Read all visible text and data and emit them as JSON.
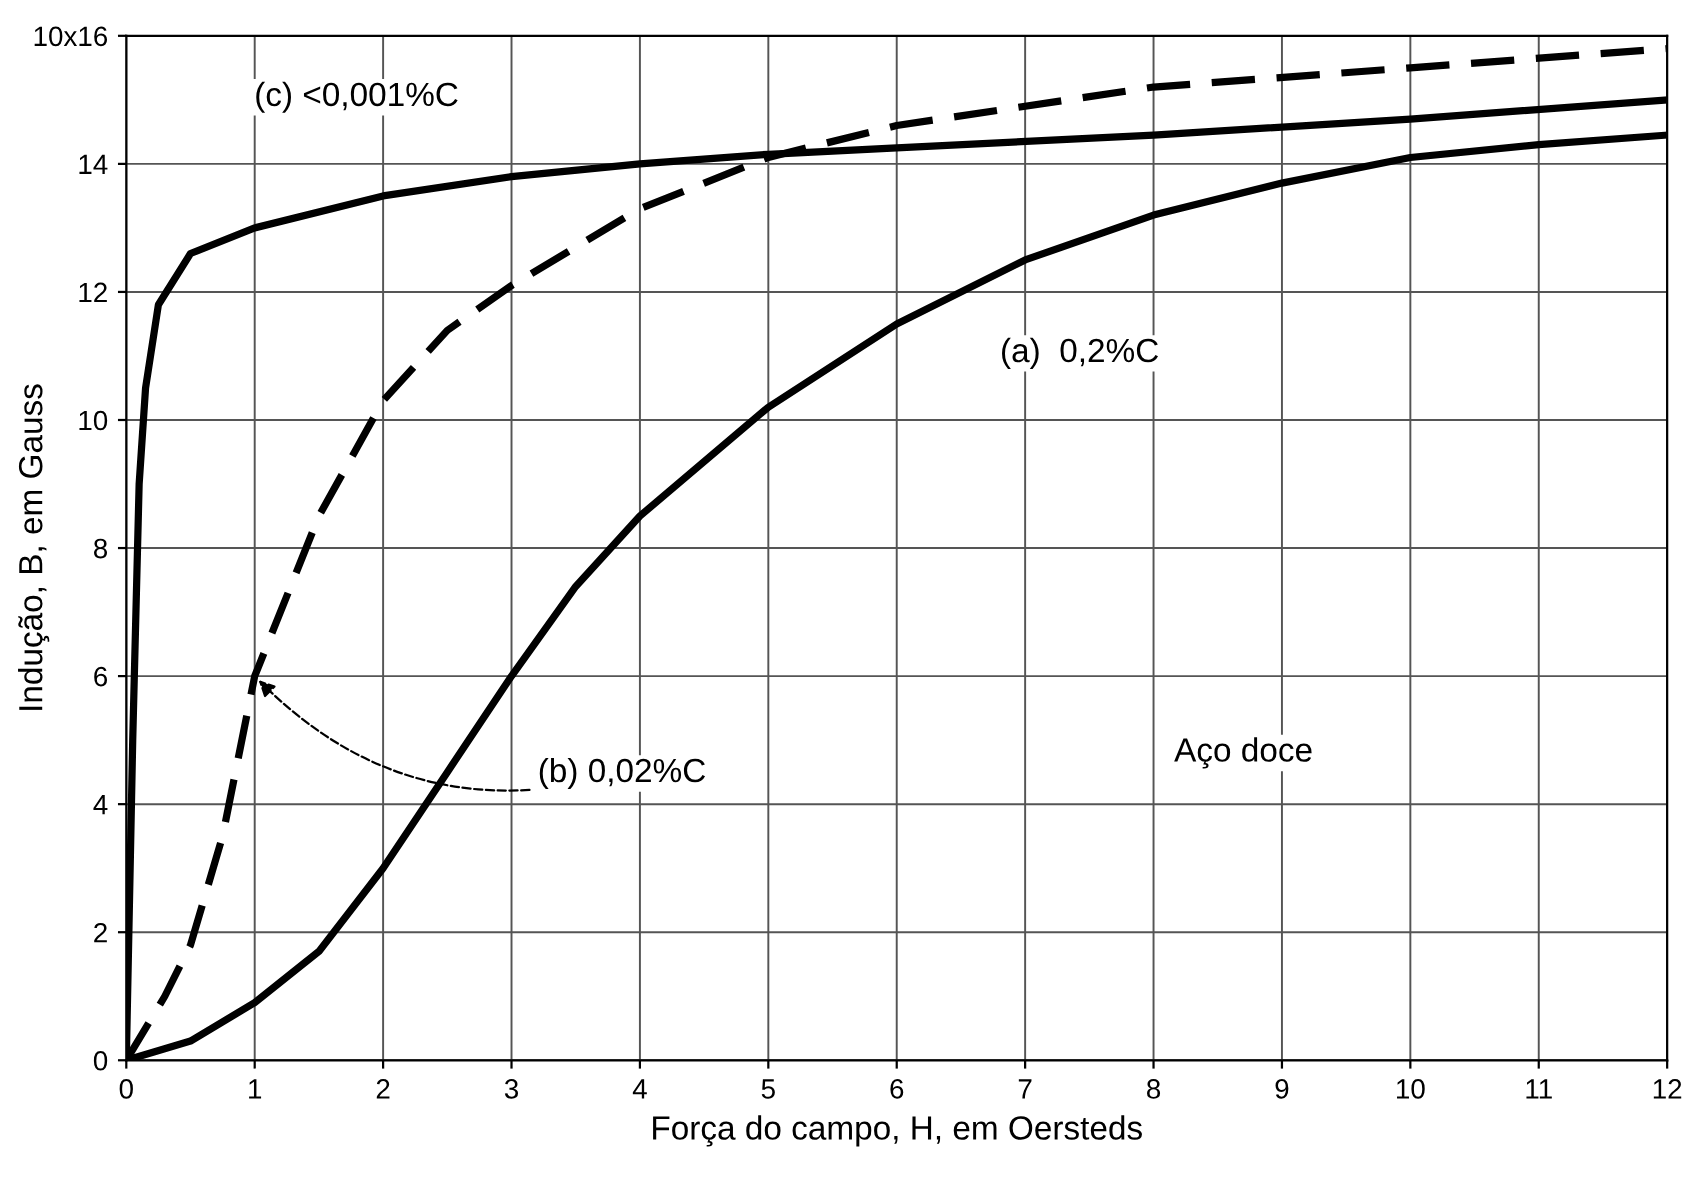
{
  "chart_data": {
    "type": "line",
    "xlabel": "Força do campo, H, em Oersteds",
    "ylabel": "Indução, B, em Gauss",
    "xlim": [
      0,
      12
    ],
    "ylim": [
      0,
      16
    ],
    "xticks": [
      0,
      1,
      2,
      3,
      4,
      5,
      6,
      7,
      8,
      9,
      10,
      11,
      12
    ],
    "yticks": [
      0,
      2,
      4,
      6,
      8,
      10,
      12,
      14,
      {
        "value": 16,
        "label": "10x16"
      }
    ],
    "grid": true,
    "legend": false,
    "marker": "none",
    "series": [
      {
        "color": "#000000",
        "line_style": "solid",
        "x": [
          0,
          0.5,
          1,
          1.5,
          2,
          2.5,
          3,
          3.5,
          4,
          5,
          6,
          7,
          8,
          9,
          10,
          11,
          12
        ],
        "values": [
          0,
          0.3,
          0.9,
          1.7,
          3.0,
          4.5,
          6.0,
          7.4,
          8.5,
          10.2,
          11.5,
          12.5,
          13.2,
          13.7,
          14.1,
          14.3,
          14.45
        ]
      },
      {
        "color": "#000000",
        "line_style": "dashed",
        "x": [
          0,
          0.3,
          0.5,
          0.75,
          1,
          1.5,
          2,
          2.5,
          3,
          4,
          5,
          6,
          8,
          10,
          12
        ],
        "values": [
          0,
          1,
          1.8,
          3.5,
          6,
          8.5,
          10.3,
          11.4,
          12.1,
          13.3,
          14.1,
          14.6,
          15.2,
          15.5,
          15.8
        ]
      },
      {
        "color": "#000000",
        "line_style": "solid",
        "x": [
          0,
          0.05,
          0.1,
          0.15,
          0.25,
          0.5,
          1,
          2,
          3,
          4,
          5,
          6,
          8,
          10,
          12
        ],
        "values": [
          0,
          5,
          9,
          10.5,
          11.8,
          12.6,
          13.0,
          13.5,
          13.8,
          14.0,
          14.15,
          14.25,
          14.45,
          14.7,
          15.0
        ]
      }
    ],
    "annotations": [
      "(a)  0,2%C",
      {
        "text": "(b) 0,02%C",
        "x": 1,
        "y": 6
      },
      "(c) <0,001%C",
      "Aço doce"
    ]
  }
}
